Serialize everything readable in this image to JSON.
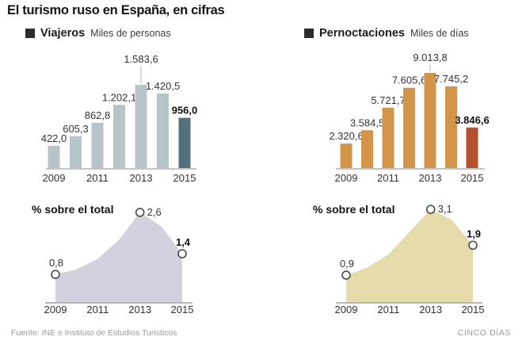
{
  "title": "El turismo ruso en España, en cifras",
  "footer": {
    "source": "Fuente: INE e Instituto de Estudios Turisticos",
    "brand": "CINCO DÍAS"
  },
  "chart_data": [
    {
      "id": "viajeros",
      "type": "bar",
      "legend": "Viajeros",
      "unit": "Miles de personas",
      "categories": [
        "2009",
        "2010",
        "2011",
        "2012",
        "2013",
        "2014",
        "2015"
      ],
      "values": [
        422.0,
        605.3,
        862.8,
        1202.1,
        1583.6,
        1420.5,
        956.0
      ],
      "value_labels": [
        "422,0",
        "605,3",
        "862,8",
        "1.202,1",
        "1.583,6",
        "1.420,5",
        "956,0"
      ],
      "x_tick_labels": [
        "2009",
        "2011",
        "2013",
        "2015"
      ],
      "ylim": [
        0,
        1583.6
      ],
      "bar_color": "#b7c5cb",
      "highlight_color": "#55707d",
      "highlight_index": 6,
      "callout_index": 4,
      "grid": false
    },
    {
      "id": "pernoctaciones",
      "type": "bar",
      "legend": "Pernoctaciones",
      "unit": "Miles de días",
      "categories": [
        "2009",
        "2010",
        "2011",
        "2012",
        "2013",
        "2014",
        "2015"
      ],
      "values": [
        2320.6,
        3584.5,
        5721.7,
        7605.6,
        9013.8,
        7745.2,
        3846.6
      ],
      "value_labels": [
        "2.320,6",
        "3.584,5",
        "5.721,7",
        "7.605,6",
        "9.013,8",
        "7.745,2",
        "3.846,6"
      ],
      "x_tick_labels": [
        "2009",
        "2011",
        "2013",
        "2015"
      ],
      "ylim": [
        0,
        9013.8
      ],
      "bar_color": "#d2954a",
      "highlight_color": "#b5512f",
      "highlight_index": 6,
      "callout_index": 4,
      "grid": false
    },
    {
      "id": "viajeros_share",
      "type": "area",
      "title": "% sobre el total",
      "categories": [
        "2009",
        "2010",
        "2011",
        "2012",
        "2013",
        "2014",
        "2015"
      ],
      "values": [
        0.8,
        0.95,
        1.25,
        1.8,
        2.6,
        2.2,
        1.4
      ],
      "labeled_points": [
        {
          "index": 0,
          "label": "0,8",
          "value": 0.8,
          "position": "above",
          "bold": false
        },
        {
          "index": 4,
          "label": "2,6",
          "value": 2.6,
          "position": "right",
          "bold": false
        },
        {
          "index": 6,
          "label": "1,4",
          "value": 1.4,
          "position": "above",
          "bold": true
        }
      ],
      "x_tick_labels": [
        "2009",
        "2011",
        "2013",
        "2015"
      ],
      "fill_color": "#d3d1dd",
      "grid": false
    },
    {
      "id": "pernoctaciones_share",
      "type": "area",
      "title": "% sobre el total",
      "categories": [
        "2009",
        "2010",
        "2011",
        "2012",
        "2013",
        "2014",
        "2015"
      ],
      "values": [
        0.9,
        1.15,
        1.6,
        2.35,
        3.1,
        2.75,
        1.9
      ],
      "labeled_points": [
        {
          "index": 0,
          "label": "0,9",
          "value": 0.9,
          "position": "above",
          "bold": false
        },
        {
          "index": 4,
          "label": "3,1",
          "value": 3.1,
          "position": "right",
          "bold": false
        },
        {
          "index": 6,
          "label": "1,9",
          "value": 1.9,
          "position": "above",
          "bold": true
        }
      ],
      "x_tick_labels": [
        "2009",
        "2011",
        "2013",
        "2015"
      ],
      "fill_color": "#e6dcab",
      "grid": false
    }
  ]
}
